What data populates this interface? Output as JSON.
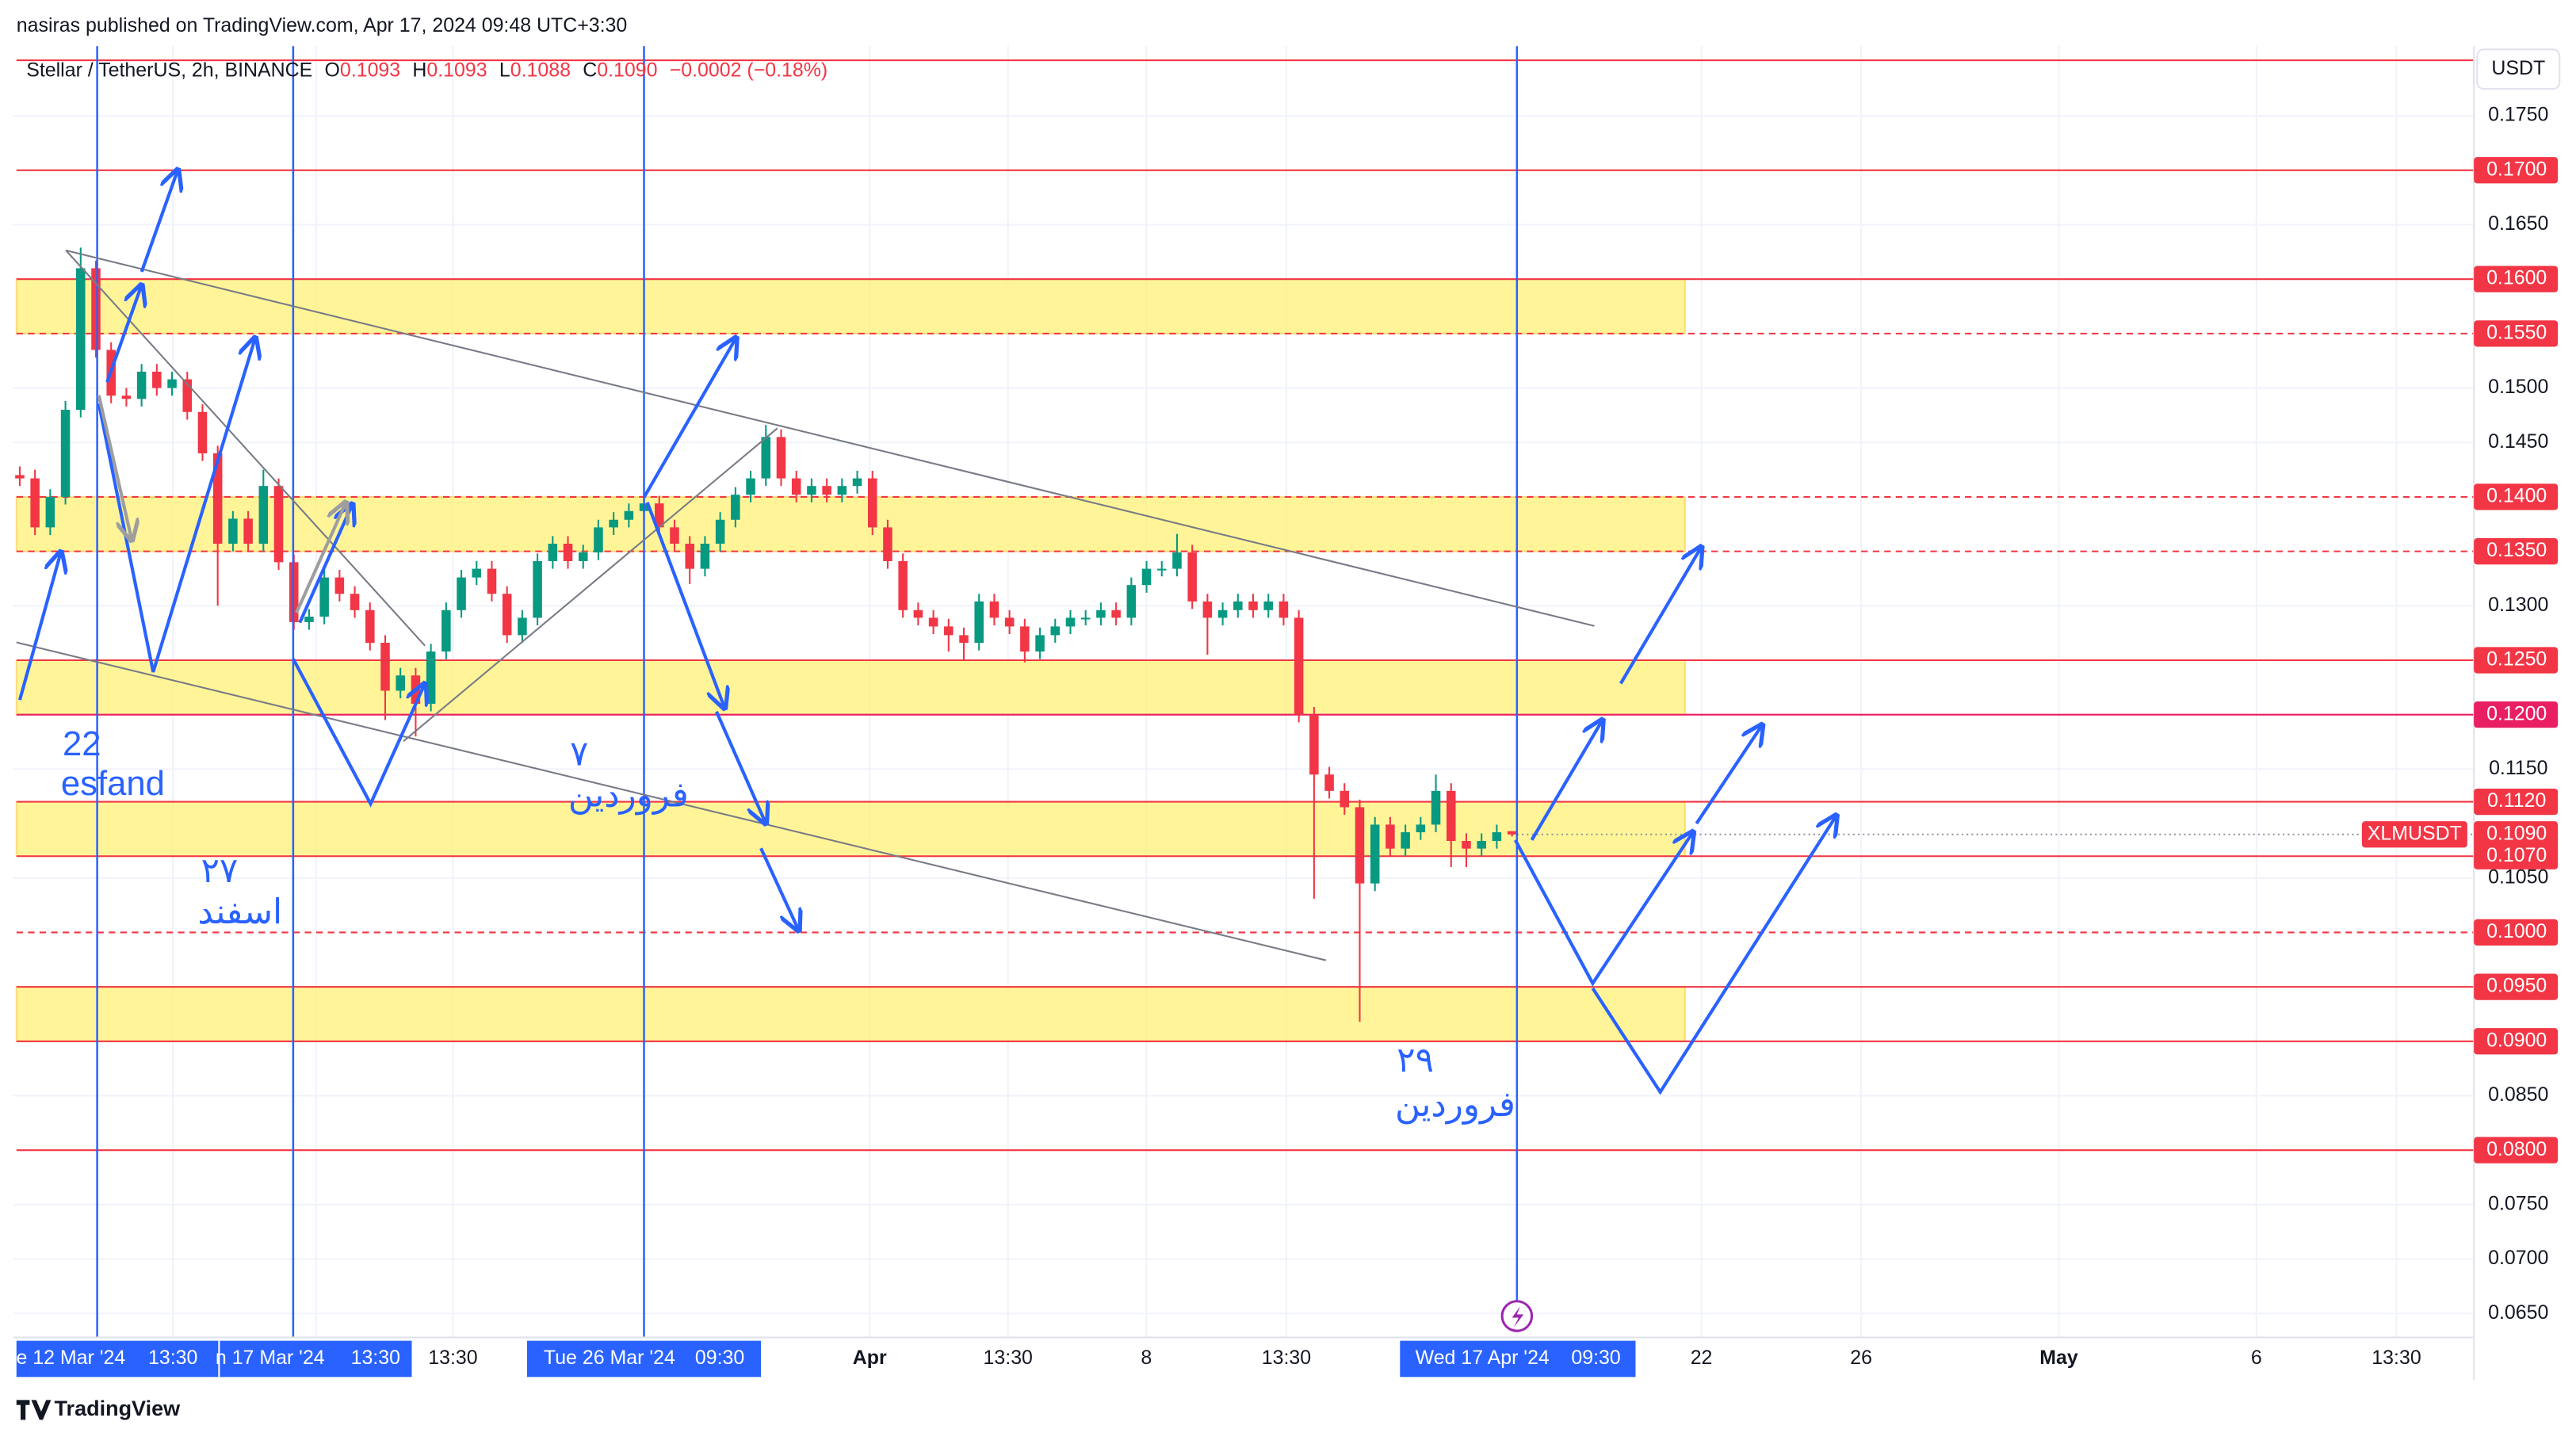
{
  "header": {
    "publisher": "nasiras published on TradingView.com, Apr 17, 2024 09:48 UTC+3:30"
  },
  "legend": {
    "symbol": "Stellar / TetherUS, 2h, BINANCE",
    "o_label": "O",
    "open": "0.1093",
    "h_label": "H",
    "high": "0.1093",
    "l_label": "L",
    "low": "0.1088",
    "c_label": "C",
    "close": "0.1090",
    "change": "−0.0002 (−0.18%)"
  },
  "chart_data": {
    "type": "candlestick",
    "currency": "USDT",
    "symbol_tag": "XLMUSDT",
    "ylim": [
      0.0628,
      0.1814
    ],
    "yticks": [
      {
        "value": 0.065,
        "label": "0.0650"
      },
      {
        "value": 0.07,
        "label": "0.0700"
      },
      {
        "value": 0.075,
        "label": "0.0750"
      },
      {
        "value": 0.085,
        "label": "0.0850"
      },
      {
        "value": 0.105,
        "label": "0.1050"
      },
      {
        "value": 0.115,
        "label": "0.1150"
      },
      {
        "value": 0.13,
        "label": "0.1300"
      },
      {
        "value": 0.145,
        "label": "0.1450"
      },
      {
        "value": 0.15,
        "label": "0.1500"
      },
      {
        "value": 0.165,
        "label": "0.1650"
      },
      {
        "value": 0.175,
        "label": "0.1750"
      }
    ],
    "grid": true,
    "up_color": "#089981",
    "down_color": "#f23645",
    "ohlc": [
      [
        0.142,
        0.1428,
        0.141,
        0.1417
      ],
      [
        0.1417,
        0.1425,
        0.1365,
        0.1372
      ],
      [
        0.1372,
        0.1407,
        0.1365,
        0.14
      ],
      [
        0.14,
        0.1488,
        0.1393,
        0.148
      ],
      [
        0.148,
        0.1629,
        0.1473,
        0.161
      ],
      [
        0.161,
        0.1617,
        0.1528,
        0.1535
      ],
      [
        0.1535,
        0.1542,
        0.1486,
        0.1493
      ],
      [
        0.1493,
        0.15,
        0.1483,
        0.149
      ],
      [
        0.149,
        0.1522,
        0.1483,
        0.1515
      ],
      [
        0.1515,
        0.1522,
        0.1493,
        0.15
      ],
      [
        0.15,
        0.1515,
        0.1493,
        0.1508
      ],
      [
        0.1508,
        0.1515,
        0.1471,
        0.1478
      ],
      [
        0.1478,
        0.1485,
        0.1433,
        0.144
      ],
      [
        0.144,
        0.1447,
        0.13,
        0.1357
      ],
      [
        0.1357,
        0.1387,
        0.135,
        0.138
      ],
      [
        0.138,
        0.1387,
        0.135,
        0.1357
      ],
      [
        0.1357,
        0.1425,
        0.135,
        0.141
      ],
      [
        0.141,
        0.1417,
        0.1333,
        0.134
      ],
      [
        0.134,
        0.1347,
        0.1278,
        0.1285
      ],
      [
        0.1285,
        0.1297,
        0.1278,
        0.129
      ],
      [
        0.129,
        0.1333,
        0.1283,
        0.1326
      ],
      [
        0.1326,
        0.1333,
        0.1304,
        0.1311
      ],
      [
        0.1311,
        0.1318,
        0.1289,
        0.1296
      ],
      [
        0.1296,
        0.1303,
        0.1259,
        0.1266
      ],
      [
        0.1266,
        0.1273,
        0.1195,
        0.1222
      ],
      [
        0.1222,
        0.1243,
        0.1215,
        0.1236
      ],
      [
        0.1236,
        0.1243,
        0.118,
        0.121
      ],
      [
        0.121,
        0.1265,
        0.1203,
        0.1258
      ],
      [
        0.1258,
        0.1303,
        0.1251,
        0.1296
      ],
      [
        0.1296,
        0.1333,
        0.1289,
        0.1326
      ],
      [
        0.1326,
        0.1341,
        0.1319,
        0.1334
      ],
      [
        0.1334,
        0.1341,
        0.1304,
        0.1311
      ],
      [
        0.1311,
        0.1318,
        0.1266,
        0.1273
      ],
      [
        0.1273,
        0.1296,
        0.1266,
        0.1289
      ],
      [
        0.1289,
        0.1348,
        0.1282,
        0.1341
      ],
      [
        0.1341,
        0.1364,
        0.1334,
        0.1357
      ],
      [
        0.1357,
        0.1364,
        0.1334,
        0.1341
      ],
      [
        0.1341,
        0.1356,
        0.1334,
        0.1349
      ],
      [
        0.1349,
        0.1379,
        0.1342,
        0.1372
      ],
      [
        0.1372,
        0.1386,
        0.1365,
        0.1379
      ],
      [
        0.1379,
        0.1394,
        0.1372,
        0.1387
      ],
      [
        0.1387,
        0.1401,
        0.138,
        0.1394
      ],
      [
        0.1394,
        0.1401,
        0.1365,
        0.1372
      ],
      [
        0.1372,
        0.1379,
        0.135,
        0.1357
      ],
      [
        0.1357,
        0.1364,
        0.132,
        0.1334
      ],
      [
        0.1334,
        0.1364,
        0.1327,
        0.1357
      ],
      [
        0.1357,
        0.1386,
        0.135,
        0.1379
      ],
      [
        0.1379,
        0.1409,
        0.1372,
        0.1402
      ],
      [
        0.1402,
        0.1424,
        0.1395,
        0.1417
      ],
      [
        0.1417,
        0.1466,
        0.141,
        0.1455
      ],
      [
        0.1455,
        0.1462,
        0.141,
        0.1417
      ],
      [
        0.1417,
        0.1424,
        0.1395,
        0.1402
      ],
      [
        0.1402,
        0.1417,
        0.1395,
        0.141
      ],
      [
        0.141,
        0.1417,
        0.1395,
        0.1402
      ],
      [
        0.1402,
        0.1417,
        0.1395,
        0.141
      ],
      [
        0.141,
        0.1424,
        0.1403,
        0.1417
      ],
      [
        0.1417,
        0.1424,
        0.1365,
        0.1372
      ],
      [
        0.1372,
        0.1379,
        0.1334,
        0.1341
      ],
      [
        0.1341,
        0.1348,
        0.1289,
        0.1296
      ],
      [
        0.1296,
        0.1303,
        0.1282,
        0.1289
      ],
      [
        0.1289,
        0.1296,
        0.1274,
        0.1281
      ],
      [
        0.1281,
        0.1288,
        0.1258,
        0.1273
      ],
      [
        0.1273,
        0.128,
        0.125,
        0.1266
      ],
      [
        0.1266,
        0.1311,
        0.1259,
        0.1304
      ],
      [
        0.1304,
        0.1311,
        0.1282,
        0.1289
      ],
      [
        0.1289,
        0.1296,
        0.1274,
        0.1281
      ],
      [
        0.1281,
        0.1288,
        0.1248,
        0.1258
      ],
      [
        0.1258,
        0.128,
        0.1251,
        0.1273
      ],
      [
        0.1273,
        0.1288,
        0.1266,
        0.1281
      ],
      [
        0.1281,
        0.1296,
        0.1274,
        0.1289
      ],
      [
        0.1289,
        0.1296,
        0.1282,
        0.1289
      ],
      [
        0.1289,
        0.1303,
        0.1282,
        0.1296
      ],
      [
        0.1296,
        0.1303,
        0.1282,
        0.1289
      ],
      [
        0.1289,
        0.1326,
        0.1282,
        0.1319
      ],
      [
        0.1319,
        0.1341,
        0.1312,
        0.1334
      ],
      [
        0.1334,
        0.1341,
        0.1327,
        0.1334
      ],
      [
        0.1334,
        0.1366,
        0.1327,
        0.1349
      ],
      [
        0.1349,
        0.1356,
        0.1297,
        0.1304
      ],
      [
        0.1304,
        0.1311,
        0.1255,
        0.1289
      ],
      [
        0.1289,
        0.1303,
        0.1282,
        0.1296
      ],
      [
        0.1296,
        0.1311,
        0.1289,
        0.1304
      ],
      [
        0.1304,
        0.1311,
        0.1289,
        0.1296
      ],
      [
        0.1296,
        0.1311,
        0.1289,
        0.1304
      ],
      [
        0.1304,
        0.1311,
        0.1282,
        0.1289
      ],
      [
        0.1289,
        0.1296,
        0.1193,
        0.12
      ],
      [
        0.12,
        0.1207,
        0.1031,
        0.1145
      ],
      [
        0.1145,
        0.1152,
        0.1123,
        0.113
      ],
      [
        0.113,
        0.1137,
        0.1108,
        0.1115
      ],
      [
        0.1115,
        0.1122,
        0.0918,
        0.1045
      ],
      [
        0.1045,
        0.1106,
        0.1038,
        0.1099
      ],
      [
        0.1099,
        0.1106,
        0.107,
        0.1077
      ],
      [
        0.1077,
        0.1099,
        0.107,
        0.1092
      ],
      [
        0.1092,
        0.1106,
        0.1085,
        0.1099
      ],
      [
        0.1099,
        0.1145,
        0.1092,
        0.113
      ],
      [
        0.113,
        0.1137,
        0.106,
        0.1084
      ],
      [
        0.1084,
        0.1091,
        0.106,
        0.1077
      ],
      [
        0.1077,
        0.1091,
        0.107,
        0.1084
      ],
      [
        0.1084,
        0.1099,
        0.1077,
        0.1092
      ],
      [
        0.1093,
        0.1093,
        0.1088,
        0.109
      ]
    ],
    "level_color": "#f23645",
    "levels": [
      {
        "value": 0.1801,
        "style": "solid"
      },
      {
        "value": 0.17,
        "label": "0.1700",
        "style": "solid"
      },
      {
        "value": 0.16,
        "label": "0.1600",
        "style": "solid"
      },
      {
        "value": 0.155,
        "label": "0.1550",
        "style": "dashed"
      },
      {
        "value": 0.14,
        "label": "0.1400",
        "style": "dashed"
      },
      {
        "value": 0.135,
        "label": "0.1350",
        "style": "dashed"
      },
      {
        "value": 0.125,
        "label": "0.1250",
        "style": "solid"
      },
      {
        "value": 0.12,
        "label": "0.1200",
        "style": "solid",
        "color": "#e91e63"
      },
      {
        "value": 0.112,
        "label": "0.1120",
        "style": "solid"
      },
      {
        "value": 0.107,
        "label": "0.1070",
        "style": "solid"
      },
      {
        "value": 0.1,
        "label": "0.1000",
        "style": "dashed"
      },
      {
        "value": 0.095,
        "label": "0.0950",
        "style": "solid"
      },
      {
        "value": 0.09,
        "label": "0.0900",
        "style": "solid"
      },
      {
        "value": 0.08,
        "label": "0.0800",
        "style": "solid"
      }
    ],
    "zone_color": "#fff176",
    "zones": [
      [
        0.155,
        0.16
      ],
      [
        0.135,
        0.14
      ],
      [
        0.12,
        0.125
      ],
      [
        0.107,
        0.112
      ],
      [
        0.09,
        0.095
      ]
    ],
    "x_labels": [
      "e 12 Mar '24",
      "13:30",
      "n 17 Mar '24",
      "13:30",
      "13:30",
      "Tue 26 Mar '24",
      "09:30",
      "Apr",
      "13:30",
      "8",
      "13:30",
      "Wed 17 Apr '24",
      "09:30",
      "22",
      "26",
      "May",
      "6",
      "13:30"
    ],
    "annotations": [
      "22",
      "esfand",
      "۷",
      "فروردین",
      "۲۷",
      "اسفند",
      "۲۹",
      "فروردین"
    ]
  },
  "footer": {
    "brand": "TradingView"
  }
}
